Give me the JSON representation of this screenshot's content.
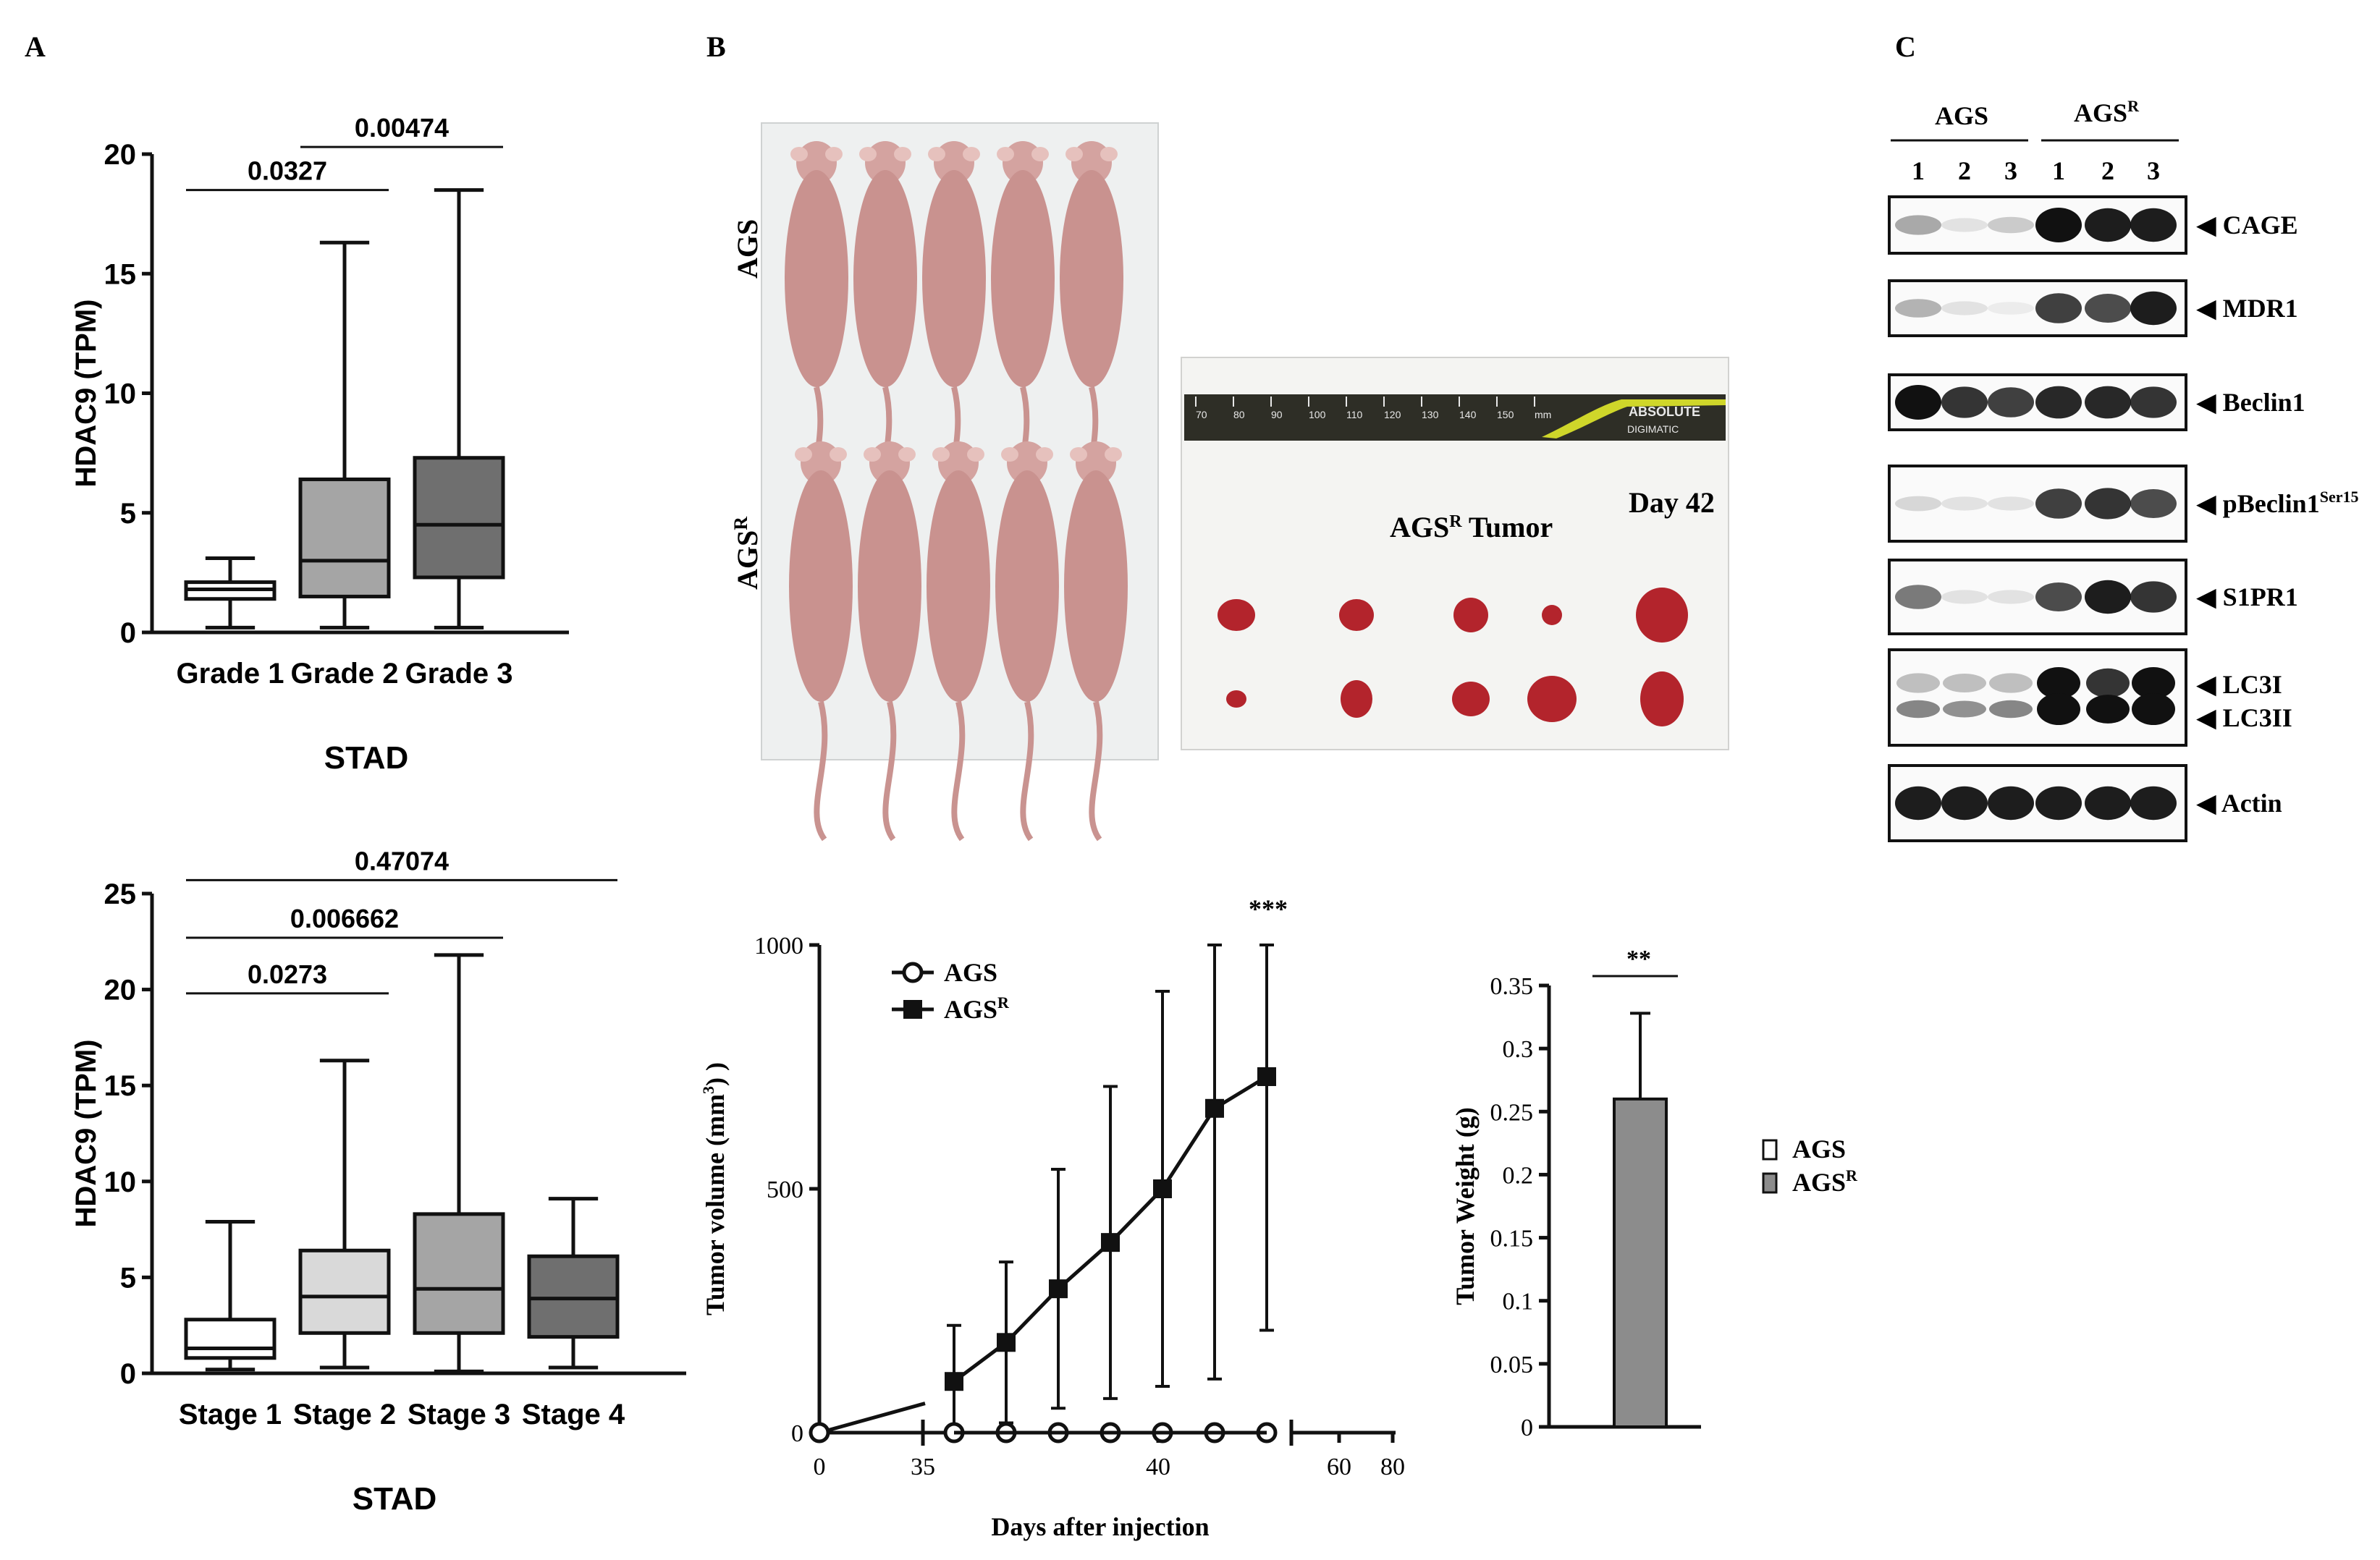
{
  "panels": {
    "A": "A",
    "B": "B",
    "C": "C"
  },
  "colors": {
    "line": "#111111",
    "white_box": "#ffffff",
    "light_box": "#d9d9d9",
    "mid_box": "#a5a5a5",
    "dark_box": "#6f6f6f",
    "bar_fill": "#8c8c8c",
    "mouse": "#c9928f",
    "tumor": "#b3242c",
    "ruler_yellow": "#cfd62a"
  },
  "photos": {
    "mice_row1_label": "AGS",
    "mice_row2_label": "AGS",
    "mice_row2_sup": "R",
    "tumor_title": "AGS",
    "tumor_title_sup": "R",
    "tumor_title_rest": " Tumor",
    "tumor_day": "Day 42",
    "ruler_brand": "ABSOLUTE",
    "ruler_sub": "DIGIMATIC",
    "ruler_ticks": [
      "70",
      "80",
      "90",
      "100",
      "110",
      "120",
      "130",
      "140",
      "150",
      "mm"
    ]
  },
  "chart_data": [
    {
      "id": "grade",
      "type": "box",
      "ylabel": "HDAC9 (TPM)",
      "xlabel": "STAD",
      "ylim": [
        0,
        20
      ],
      "yticks": [
        "0",
        "5",
        "10",
        "15",
        "20"
      ],
      "categories": [
        "Grade 1",
        "Grade 2",
        "Grade 3"
      ],
      "boxes": [
        {
          "min": 0.2,
          "q1": 1.4,
          "median": 1.8,
          "q3": 2.1,
          "max": 3.1,
          "fill": "white_box"
        },
        {
          "min": 0.2,
          "q1": 1.5,
          "median": 3.0,
          "q3": 6.4,
          "max": 16.3,
          "fill": "mid_box"
        },
        {
          "min": 0.2,
          "q1": 2.3,
          "median": 4.5,
          "q3": 7.3,
          "max": 18.5,
          "fill": "dark_box"
        }
      ],
      "comparisons": [
        {
          "from": 0,
          "to": 1,
          "y": 18.5,
          "label": "0.0327"
        },
        {
          "from": 1,
          "to": 2,
          "y": 20.3,
          "label": "0.00474"
        }
      ]
    },
    {
      "id": "stage",
      "type": "box",
      "ylabel": "HDAC9 (TPM)",
      "xlabel": "STAD",
      "ylim": [
        0,
        25
      ],
      "yticks": [
        "0",
        "5",
        "10",
        "15",
        "20",
        "25"
      ],
      "categories": [
        "Stage 1",
        "Stage 2",
        "Stage 3",
        "Stage 4"
      ],
      "boxes": [
        {
          "min": 0.2,
          "q1": 0.8,
          "median": 1.3,
          "q3": 2.8,
          "max": 7.9,
          "fill": "white_box"
        },
        {
          "min": 0.3,
          "q1": 2.1,
          "median": 4.0,
          "q3": 6.4,
          "max": 16.3,
          "fill": "light_box"
        },
        {
          "min": 0.1,
          "q1": 2.1,
          "median": 4.4,
          "q3": 8.3,
          "max": 21.8,
          "fill": "mid_box"
        },
        {
          "min": 0.3,
          "q1": 1.9,
          "median": 3.9,
          "q3": 6.1,
          "max": 9.1,
          "fill": "dark_box"
        }
      ],
      "comparisons": [
        {
          "from": 0,
          "to": 1,
          "y": 19.8,
          "label": "0.0273"
        },
        {
          "from": 0,
          "to": 2,
          "y": 22.7,
          "label": "0.006662"
        },
        {
          "from": 0,
          "to": 3,
          "y": 25.7,
          "label": "0.47074"
        }
      ]
    },
    {
      "id": "tumor_volume",
      "type": "line",
      "ylabel": "Tumor volume (mm",
      "ylabel_sup": "3",
      "ylabel_end": ") )",
      "xlabel": "Days after injection",
      "ylim": [
        0,
        1000
      ],
      "yticks": [
        "0",
        "500",
        "1000"
      ],
      "xticks": [
        "0",
        "35",
        "40",
        "60",
        "80"
      ],
      "legend": [
        "AGS",
        "AGS"
      ],
      "legend_sup": "R",
      "significance": "***",
      "series": [
        {
          "name": "AGS",
          "marker": "circle",
          "x": [
            0,
            36,
            37,
            38,
            39,
            40,
            41,
            42
          ],
          "y": [
            0,
            0,
            0,
            0,
            0,
            0,
            0,
            0
          ],
          "err": [
            0,
            0,
            0,
            0,
            0,
            0,
            0,
            0
          ]
        },
        {
          "name": "AGSR",
          "marker": "square",
          "x": [
            36,
            37,
            38,
            39,
            40,
            41,
            42
          ],
          "y": [
            105,
            185,
            295,
            390,
            500,
            665,
            730
          ],
          "err": [
            115,
            165,
            245,
            320,
            405,
            555,
            520
          ]
        }
      ]
    },
    {
      "id": "tumor_weight",
      "type": "bar",
      "ylabel": "Tumor Weight (g)",
      "ylim": [
        0,
        0.35
      ],
      "yticks": [
        "0",
        "0.05",
        "0.1",
        "0.15",
        "0.2",
        "0.25",
        "0.3",
        "0.35"
      ],
      "categories": [
        "AGS",
        "AGSR"
      ],
      "values": [
        0,
        0.26
      ],
      "errors": [
        0,
        0.068
      ],
      "legend": [
        "AGS",
        "AGS"
      ],
      "legend_sup": "R",
      "significance": "**"
    }
  ],
  "blot": {
    "group1": "AGS",
    "group2": "AGS",
    "group2_sup": "R",
    "lanes": [
      "1",
      "2",
      "3",
      "1",
      "2",
      "3"
    ],
    "rows": [
      {
        "label": "CAGE",
        "intensity": [
          0.35,
          0.1,
          0.2,
          1.0,
          0.95,
          0.95
        ]
      },
      {
        "label": "MDR1",
        "intensity": [
          0.3,
          0.1,
          0.05,
          0.8,
          0.75,
          0.95
        ]
      },
      {
        "label": "Beclin1",
        "intensity": [
          1.0,
          0.85,
          0.8,
          0.9,
          0.9,
          0.85
        ]
      },
      {
        "label": "pBeclin1",
        "sup": "Ser15",
        "intensity": [
          0.15,
          0.1,
          0.1,
          0.8,
          0.85,
          0.75
        ]
      },
      {
        "label": "S1PR1",
        "intensity": [
          0.55,
          0.1,
          0.1,
          0.75,
          0.95,
          0.85
        ]
      },
      {
        "label": "LC3I",
        "label2": "LC3II",
        "intensity": [
          0.3,
          0.25,
          0.3,
          1.0,
          0.85,
          1.0
        ]
      },
      {
        "label": "Actin",
        "intensity": [
          0.95,
          0.95,
          0.95,
          0.95,
          0.95,
          0.95
        ]
      }
    ]
  }
}
